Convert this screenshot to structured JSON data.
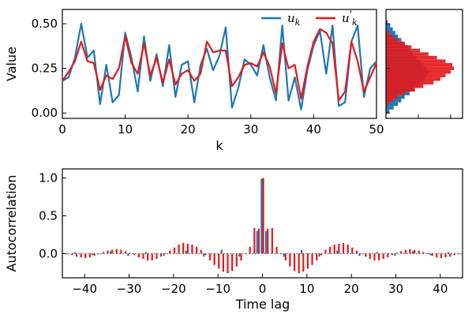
{
  "chart_data": [
    {
      "type": "line",
      "title": "",
      "xlabel": "k",
      "ylabel": "Value",
      "xlim": [
        0,
        50
      ],
      "ylim": [
        -0.03,
        0.58
      ],
      "xticks": [
        "0",
        "10",
        "20",
        "30",
        "40",
        "50"
      ],
      "yticks": [
        "0.00",
        "0.25",
        "0.50"
      ],
      "legend_position": "top-right",
      "series": [
        {
          "name": "u_k",
          "legend_label": "u",
          "legend_sub": "k",
          "legend_sup": "",
          "color": "#1f77b4",
          "x": [
            0,
            1,
            2,
            3,
            4,
            5,
            6,
            7,
            8,
            9,
            10,
            11,
            12,
            13,
            14,
            15,
            16,
            17,
            18,
            19,
            20,
            21,
            22,
            23,
            24,
            25,
            26,
            27,
            28,
            29,
            30,
            31,
            32,
            33,
            34,
            35,
            36,
            37,
            38,
            39,
            40,
            41,
            42,
            43,
            44,
            45,
            46,
            47,
            48,
            49,
            50
          ],
          "values": [
            0.18,
            0.2,
            0.31,
            0.5,
            0.31,
            0.35,
            0.05,
            0.27,
            0.06,
            0.1,
            0.45,
            0.31,
            0.12,
            0.43,
            0.18,
            0.33,
            0.15,
            0.38,
            0.09,
            0.27,
            0.29,
            0.06,
            0.27,
            0.36,
            0.24,
            0.32,
            0.48,
            0.03,
            0.14,
            0.3,
            0.27,
            0.21,
            0.38,
            0.2,
            0.07,
            0.49,
            0.07,
            0.2,
            0.02,
            0.24,
            0.38,
            0.46,
            0.22,
            0.49,
            0.04,
            0.06,
            0.4,
            0.49,
            0.09,
            0.25,
            0.29
          ]
        },
        {
          "name": "u'_k",
          "legend_label": "u",
          "legend_sub": "k",
          "legend_sup": "'",
          "color": "#e41a1c",
          "x": [
            0,
            1,
            2,
            3,
            4,
            5,
            6,
            7,
            8,
            9,
            10,
            11,
            12,
            13,
            14,
            15,
            16,
            17,
            18,
            19,
            20,
            21,
            22,
            23,
            24,
            25,
            26,
            27,
            28,
            29,
            30,
            31,
            32,
            33,
            34,
            35,
            36,
            37,
            38,
            39,
            40,
            41,
            42,
            43,
            44,
            45,
            46,
            47,
            48,
            49,
            50
          ],
          "values": [
            0.18,
            0.23,
            0.29,
            0.4,
            0.29,
            0.28,
            0.13,
            0.21,
            0.19,
            0.25,
            0.43,
            0.28,
            0.22,
            0.39,
            0.21,
            0.31,
            0.17,
            0.3,
            0.16,
            0.22,
            0.24,
            0.18,
            0.22,
            0.4,
            0.34,
            0.35,
            0.35,
            0.15,
            0.2,
            0.27,
            0.28,
            0.26,
            0.34,
            0.26,
            0.11,
            0.39,
            0.25,
            0.27,
            0.08,
            0.26,
            0.4,
            0.47,
            0.45,
            0.39,
            0.07,
            0.12,
            0.4,
            0.29,
            0.12,
            0.2,
            0.28
          ]
        }
      ]
    },
    {
      "type": "histogram",
      "orientation": "horizontal",
      "ylim": [
        -0.03,
        0.58
      ],
      "series": [
        {
          "name": "u_k",
          "color": "#1f77b4",
          "bins": [
            [
              0.0,
              4
            ],
            [
              0.02,
              9
            ],
            [
              0.04,
              14
            ],
            [
              0.06,
              18
            ],
            [
              0.08,
              22
            ],
            [
              0.1,
              28
            ],
            [
              0.12,
              33
            ],
            [
              0.14,
              38
            ],
            [
              0.16,
              42
            ],
            [
              0.18,
              46
            ],
            [
              0.2,
              48
            ],
            [
              0.22,
              50
            ],
            [
              0.24,
              48
            ],
            [
              0.26,
              44
            ],
            [
              0.28,
              40
            ],
            [
              0.3,
              36
            ],
            [
              0.32,
              32
            ],
            [
              0.34,
              28
            ],
            [
              0.36,
              25
            ],
            [
              0.38,
              22
            ],
            [
              0.4,
              18
            ],
            [
              0.42,
              14
            ],
            [
              0.44,
              11
            ],
            [
              0.46,
              8
            ],
            [
              0.48,
              5
            ],
            [
              0.5,
              2
            ]
          ]
        },
        {
          "name": "u'_k",
          "color": "#e41a1c",
          "bins": [
            [
              0.04,
              3
            ],
            [
              0.06,
              8
            ],
            [
              0.08,
              14
            ],
            [
              0.1,
              22
            ],
            [
              0.12,
              34
            ],
            [
              0.14,
              44
            ],
            [
              0.16,
              56
            ],
            [
              0.18,
              64
            ],
            [
              0.2,
              70
            ],
            [
              0.22,
              76
            ],
            [
              0.24,
              80
            ],
            [
              0.26,
              78
            ],
            [
              0.28,
              70
            ],
            [
              0.3,
              60
            ],
            [
              0.32,
              50
            ],
            [
              0.34,
              40
            ],
            [
              0.36,
              30
            ],
            [
              0.38,
              22
            ],
            [
              0.4,
              14
            ],
            [
              0.42,
              8
            ],
            [
              0.44,
              4
            ]
          ]
        }
      ]
    },
    {
      "type": "bar",
      "title": "",
      "xlabel": "Time lag",
      "ylabel": "Autocorrelation",
      "xlim": [
        -45,
        45
      ],
      "ylim": [
        -0.32,
        1.12
      ],
      "xticks": [
        "−40",
        "−30",
        "−20",
        "−10",
        "0",
        "10",
        "20",
        "30",
        "40"
      ],
      "yticks": [
        "0.0",
        "0.5",
        "1.0"
      ],
      "series": [
        {
          "name": "u_k",
          "color": "#1f77b4",
          "lags": [
            -42,
            -38,
            -34,
            -30,
            -26,
            -22,
            -17,
            -13,
            -9,
            -5,
            -1,
            0,
            1,
            5,
            9,
            13,
            17,
            22,
            26,
            30,
            34,
            38,
            42
          ],
          "values": [
            0.02,
            -0.02,
            0.03,
            -0.03,
            0.02,
            -0.03,
            0.04,
            -0.04,
            0.05,
            -0.04,
            0.3,
            0.99,
            0.3,
            -0.04,
            0.05,
            -0.04,
            0.04,
            -0.03,
            0.02,
            -0.03,
            0.03,
            -0.02,
            0.02
          ]
        },
        {
          "name": "u'_k",
          "color": "#e41a1c",
          "lags": [
            -44,
            -43,
            -42,
            -41,
            -40,
            -39,
            -38,
            -37,
            -36,
            -35,
            -34,
            -33,
            -32,
            -31,
            -30,
            -29,
            -28,
            -27,
            -26,
            -25,
            -24,
            -23,
            -22,
            -21,
            -20,
            -19,
            -18,
            -17,
            -16,
            -15,
            -14,
            -13,
            -12,
            -11,
            -10,
            -9,
            -8,
            -7,
            -6,
            -5,
            -4,
            -3,
            -2,
            -1,
            0,
            1,
            2,
            3,
            4,
            5,
            6,
            7,
            8,
            9,
            10,
            11,
            12,
            13,
            14,
            15,
            16,
            17,
            18,
            19,
            20,
            21,
            22,
            23,
            24,
            25,
            26,
            27,
            28,
            29,
            30,
            31,
            32,
            33,
            34,
            35,
            36,
            37,
            38,
            39,
            40,
            41,
            42,
            43,
            44
          ],
          "values": [
            -0.01,
            -0.02,
            -0.04,
            -0.05,
            -0.06,
            -0.05,
            -0.03,
            -0.01,
            0.02,
            0.04,
            0.05,
            0.06,
            0.05,
            0.03,
            0.01,
            -0.02,
            -0.05,
            -0.07,
            -0.09,
            -0.09,
            -0.07,
            -0.04,
            0.0,
            0.04,
            0.08,
            0.12,
            0.14,
            0.13,
            0.12,
            0.09,
            0.05,
            -0.02,
            -0.09,
            -0.15,
            -0.2,
            -0.24,
            -0.26,
            -0.23,
            -0.17,
            -0.09,
            0.0,
            0.09,
            0.34,
            0.33,
            1.0,
            0.33,
            0.34,
            0.09,
            0.0,
            -0.09,
            -0.17,
            -0.23,
            -0.26,
            -0.24,
            -0.2,
            -0.15,
            -0.09,
            -0.02,
            0.05,
            0.09,
            0.12,
            0.13,
            0.14,
            0.12,
            0.08,
            0.04,
            0.0,
            -0.04,
            -0.07,
            -0.09,
            -0.09,
            -0.07,
            -0.05,
            -0.02,
            0.01,
            0.03,
            0.05,
            0.06,
            0.05,
            0.04,
            0.02,
            -0.01,
            -0.03,
            -0.05,
            -0.06,
            -0.05,
            -0.04,
            -0.02,
            -0.01
          ]
        }
      ]
    }
  ]
}
